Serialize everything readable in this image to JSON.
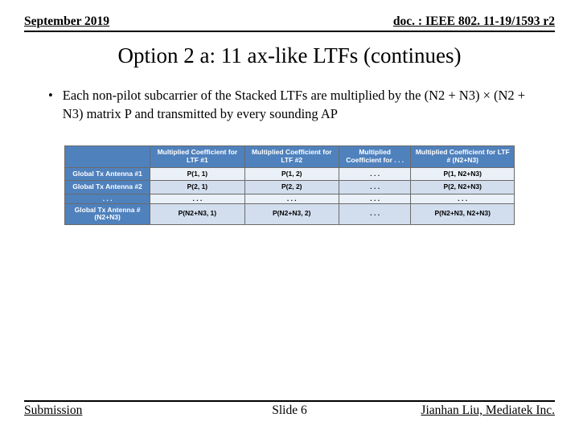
{
  "header": {
    "date": "September 2019",
    "doc": "doc. : IEEE 802. 11-19/1593 r2"
  },
  "title": "Option 2 a: 11 ax-like LTFs (continues)",
  "bullet": "Each non-pilot subcarrier of the Stacked LTFs are multiplied by the (N2 + N3) × (N2 + N3) matrix P and transmitted by every sounding AP",
  "table": {
    "headers": [
      "",
      "Multiplied Coefficient for LTF #1",
      "Multiplied Coefficient for LTF #2",
      "Multiplied Coefficient for . . .",
      "Multiplied Coefficient for LTF # (N2+N3)"
    ],
    "rows": [
      [
        "Global Tx Antenna #1",
        "P(1, 1)",
        "P(1, 2)",
        ". . .",
        "P(1, N2+N3)"
      ],
      [
        "Global Tx Antenna #2",
        "P(2, 1)",
        "P(2, 2)",
        ". . .",
        "P(2, N2+N3)"
      ],
      [
        ". . .",
        ". . .",
        ". . .",
        ". . .",
        ". . ."
      ],
      [
        "Global Tx Antenna #(N2+N3)",
        "P(N2+N3, 1)",
        "P(N2+N3, 2)",
        ". . .",
        "P(N2+N3, N2+N3)"
      ]
    ]
  },
  "footer": {
    "left": "Submission",
    "center": "Slide 6",
    "right": "Jianhan Liu, Mediatek Inc."
  },
  "colors": {
    "table_header_bg": "#4f81bd",
    "row_odd_bg": "#eaf0f7",
    "row_even_bg": "#d2deee"
  },
  "fonts": {
    "serif": "Times New Roman",
    "sans": "Arial",
    "title_size_pt": 27,
    "body_size_pt": 16.5,
    "table_size_pt": 8.5,
    "header_size_pt": 15.5
  }
}
